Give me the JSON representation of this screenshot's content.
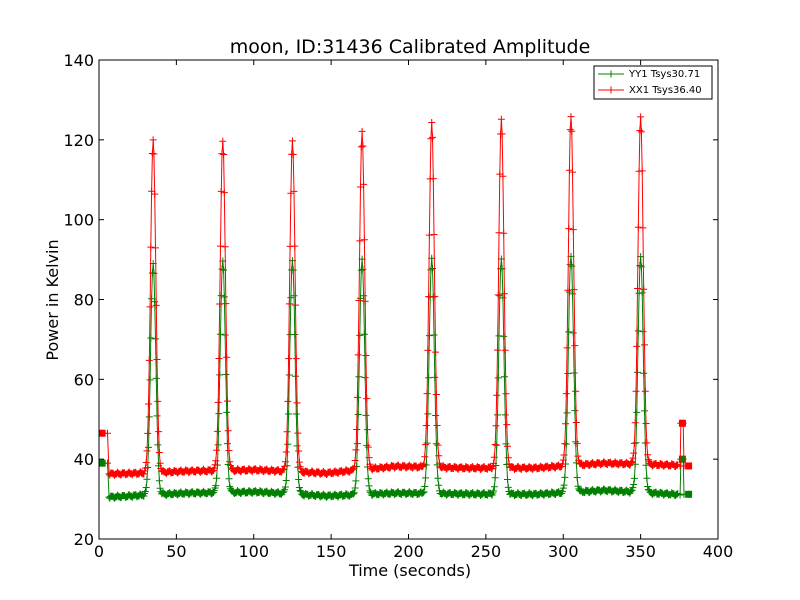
{
  "chart_data": {
    "type": "line",
    "title": "moon, ID:31436 Calibrated Amplitude",
    "xlabel": "Time (seconds)",
    "ylabel": "Power in Kelvin",
    "xlim": [
      0,
      400
    ],
    "ylim": [
      20,
      140
    ],
    "xticks": [
      0,
      50,
      100,
      150,
      200,
      250,
      300,
      350,
      400
    ],
    "yticks": [
      20,
      40,
      60,
      80,
      100,
      120,
      140
    ],
    "grid": false,
    "legend_position": "top-right",
    "colors": {
      "YY1": "#008000",
      "XX1": "#ff0000"
    },
    "series": [
      {
        "name": "YY1 Tsys30.71",
        "color": "#008000",
        "marker": "+",
        "peaks": [
          {
            "t": 35,
            "v": 89
          },
          {
            "t": 80,
            "v": 90
          },
          {
            "t": 125,
            "v": 90
          },
          {
            "t": 170,
            "v": 90
          },
          {
            "t": 215,
            "v": 90
          },
          {
            "t": 260,
            "v": 90
          },
          {
            "t": 305,
            "v": 91
          },
          {
            "t": 350,
            "v": 91
          }
        ],
        "baseline": [
          {
            "t": 7,
            "v": 30.5
          },
          {
            "t": 30,
            "v": 31.0
          },
          {
            "t": 57,
            "v": 31.5
          },
          {
            "t": 102,
            "v": 31.8
          },
          {
            "t": 147,
            "v": 30.8
          },
          {
            "t": 192,
            "v": 31.5
          },
          {
            "t": 237,
            "v": 31.3
          },
          {
            "t": 282,
            "v": 31.2
          },
          {
            "t": 327,
            "v": 32.2
          },
          {
            "t": 372,
            "v": 31.2
          },
          {
            "t": 381,
            "v": 31.2
          }
        ],
        "start": {
          "t": 2,
          "v": 39
        },
        "end_spike": {
          "t": 377,
          "v": 40
        }
      },
      {
        "name": "XX1 Tsys36.40",
        "color": "#ff0000",
        "marker": "+",
        "peaks": [
          {
            "t": 35,
            "v": 120
          },
          {
            "t": 80,
            "v": 120
          },
          {
            "t": 125,
            "v": 120
          },
          {
            "t": 170,
            "v": 122
          },
          {
            "t": 215,
            "v": 124
          },
          {
            "t": 260,
            "v": 125
          },
          {
            "t": 305,
            "v": 126
          },
          {
            "t": 350,
            "v": 126
          }
        ],
        "baseline": [
          {
            "t": 7,
            "v": 36.3
          },
          {
            "t": 30,
            "v": 36.5
          },
          {
            "t": 57,
            "v": 37.0
          },
          {
            "t": 102,
            "v": 37.3
          },
          {
            "t": 147,
            "v": 36.5
          },
          {
            "t": 192,
            "v": 38.2
          },
          {
            "t": 237,
            "v": 37.8
          },
          {
            "t": 282,
            "v": 37.8
          },
          {
            "t": 327,
            "v": 39.0
          },
          {
            "t": 372,
            "v": 38.5
          },
          {
            "t": 381,
            "v": 38.3
          }
        ],
        "start": {
          "t": 2,
          "v": 46.5
        },
        "end_spike": {
          "t": 377,
          "v": 49
        }
      }
    ]
  }
}
